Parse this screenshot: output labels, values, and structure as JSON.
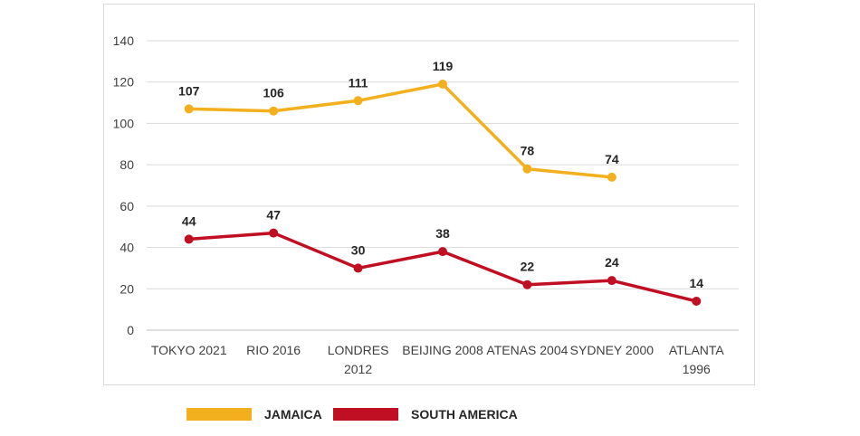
{
  "chart_data": {
    "type": "line",
    "title": "",
    "xlabel": "",
    "ylabel": "",
    "ylim": [
      0,
      140
    ],
    "yticks": [
      0,
      20,
      40,
      60,
      80,
      100,
      120,
      140
    ],
    "grid": true,
    "legend_position": "bottom",
    "categories": [
      [
        "TOKYO 2021"
      ],
      [
        "RIO 2016"
      ],
      [
        "LONDRES",
        "2012"
      ],
      [
        "BEIJING 2008"
      ],
      [
        "ATENAS 2004"
      ],
      [
        "SYDNEY 2000"
      ],
      [
        "ATLANTA",
        "1996"
      ]
    ],
    "series": [
      {
        "name": "JAMAICA",
        "color": "#F2B01E",
        "values": [
          107,
          106,
          111,
          119,
          78,
          74,
          null
        ]
      },
      {
        "name": "SOUTH AMERICA",
        "color": "#C00F23",
        "values": [
          44,
          47,
          30,
          38,
          22,
          24,
          14
        ]
      }
    ]
  }
}
